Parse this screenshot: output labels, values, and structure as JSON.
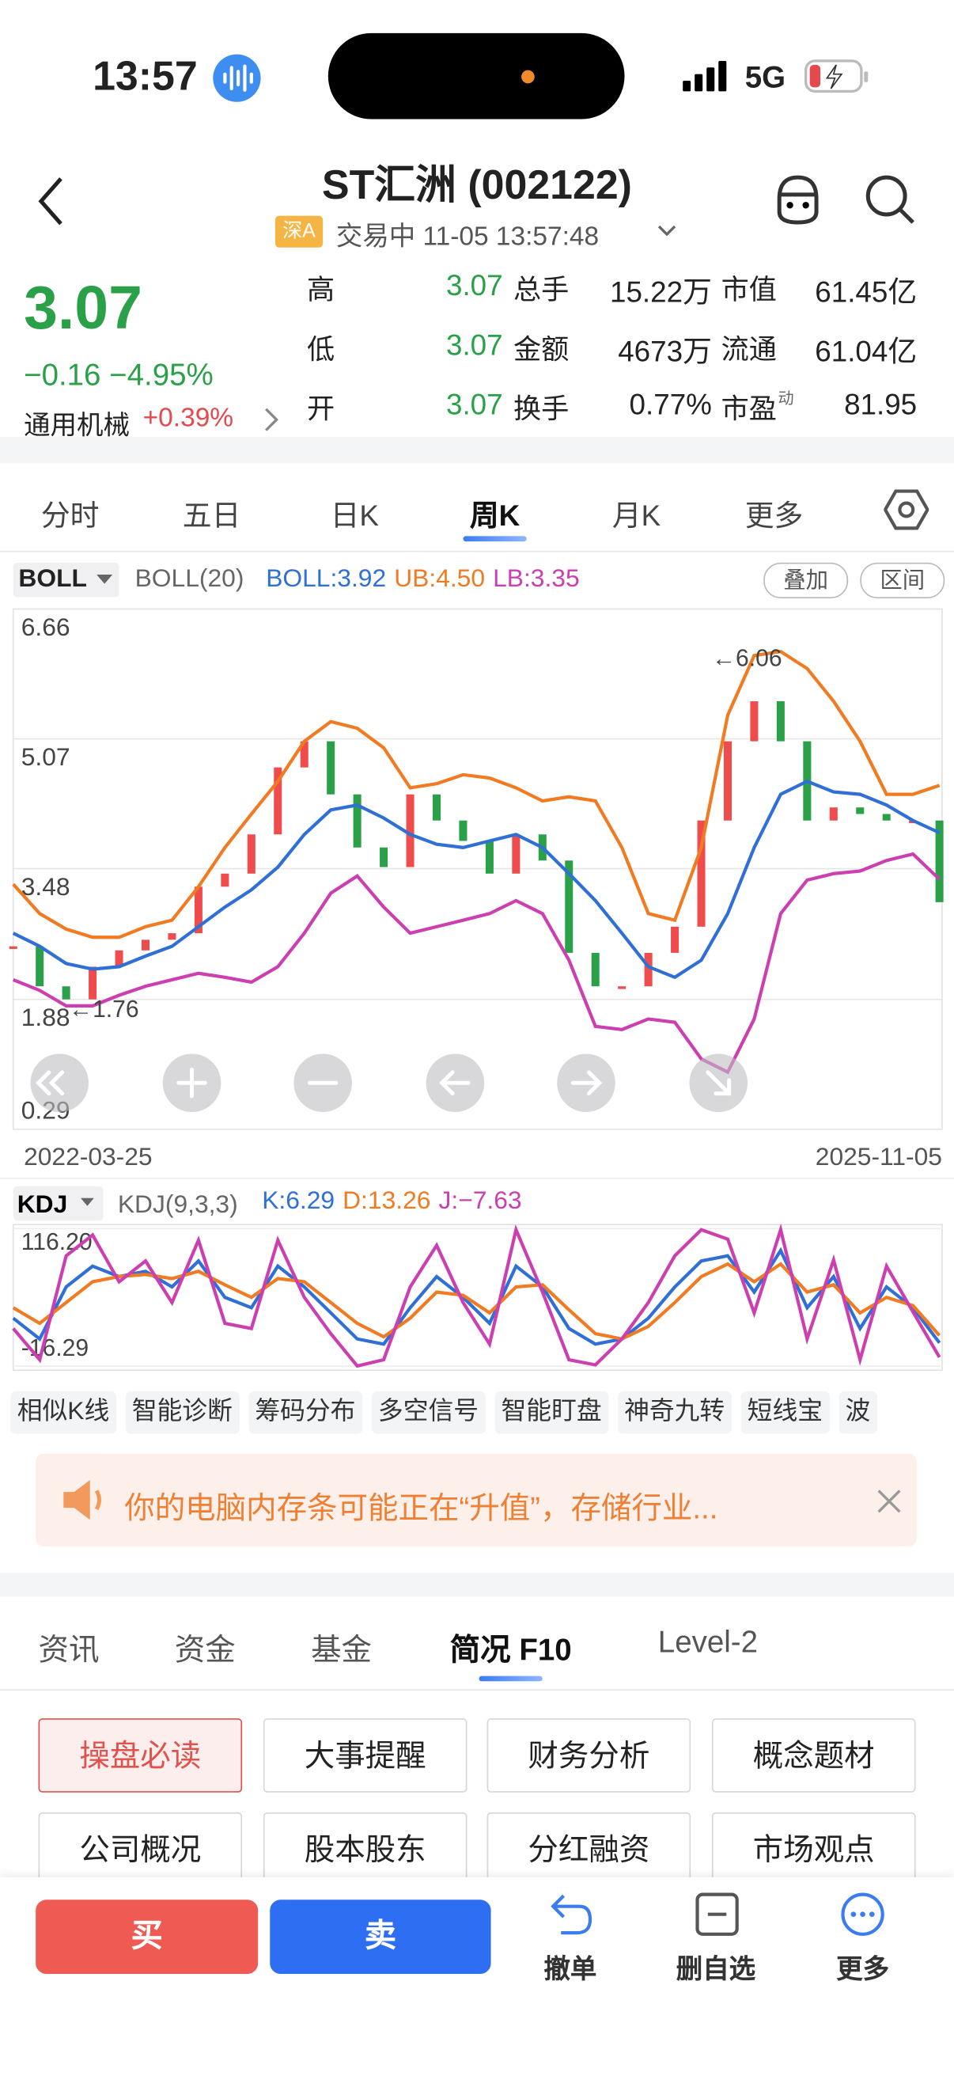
{
  "status": {
    "time": "13:57",
    "network": "5G"
  },
  "header": {
    "title": "ST汇洲 (002122)",
    "market": "深A",
    "status": "交易中 11-05 13:57:48"
  },
  "quote": {
    "price": "3.07",
    "change": "−0.16 −4.95%",
    "sector": "通用机械",
    "sector_change": "+0.39%",
    "rows": [
      [
        "高",
        "3.07",
        "总手",
        "15.22万",
        "市值",
        "61.45亿"
      ],
      [
        "低",
        "3.07",
        "金额",
        "4673万",
        "流通",
        "61.04亿"
      ],
      [
        "开",
        "3.07",
        "换手",
        "0.77%",
        "市盈",
        "81.95"
      ]
    ],
    "pe_sup": "动"
  },
  "period_tabs": [
    "分时",
    "五日",
    "日K",
    "周K",
    "月K",
    "更多"
  ],
  "indicator": {
    "name": "BOLL",
    "params": "BOLL(20)",
    "buttons": [
      "叠加",
      "区间"
    ]
  },
  "chart_data": [
    {
      "type": "line",
      "ylim": [
        0.29,
        6.66
      ],
      "yticks": [
        6.66,
        5.07,
        3.48,
        1.88,
        0.29
      ],
      "grid": true,
      "x_start": "2022-03-25",
      "x_end": "2025-11-05",
      "annotations": [
        {
          "label": "←6.06",
          "value": 6.06
        },
        {
          "label": "←1.76",
          "value": 1.76
        }
      ],
      "close": [
        2.53,
        2.04,
        1.88,
        2.28,
        2.48,
        2.61,
        2.69,
        3.26,
        3.42,
        3.9,
        4.72,
        5.04,
        4.39,
        3.74,
        3.5,
        4.39,
        4.07,
        3.82,
        3.42,
        3.9,
        3.58,
        2.45,
        2.04,
        2.04,
        2.45,
        2.77,
        4.07,
        5.04,
        5.53,
        5.04,
        4.07,
        4.23,
        4.15,
        4.07,
        4.07,
        3.07
      ],
      "series": [
        {
          "name": "BOLL",
          "label": "BOLL:3.92",
          "color": "#2f6fd6",
          "values": [
            2.69,
            2.53,
            2.32,
            2.25,
            2.28,
            2.41,
            2.53,
            2.77,
            3.01,
            3.22,
            3.5,
            3.9,
            4.2,
            4.26,
            4.1,
            3.9,
            3.78,
            3.74,
            3.82,
            3.9,
            3.74,
            3.42,
            3.09,
            2.69,
            2.28,
            2.15,
            2.36,
            2.93,
            3.74,
            4.39,
            4.55,
            4.42,
            4.39,
            4.26,
            4.07,
            3.92
          ]
        },
        {
          "name": "UB",
          "label": "UB:4.50",
          "color": "#f07b22",
          "values": [
            3.29,
            2.93,
            2.74,
            2.64,
            2.64,
            2.77,
            2.85,
            3.26,
            3.74,
            4.15,
            4.55,
            5.04,
            5.28,
            5.2,
            4.96,
            4.47,
            4.52,
            4.63,
            4.59,
            4.47,
            4.31,
            4.36,
            4.31,
            3.74,
            2.93,
            2.85,
            3.74,
            5.36,
            6.09,
            6.14,
            5.93,
            5.53,
            5.04,
            4.39,
            4.39,
            4.5
          ]
        },
        {
          "name": "LB",
          "label": "LB:3.35",
          "color": "#cc3fb0",
          "values": [
            2.12,
            1.99,
            1.8,
            1.8,
            1.93,
            2.04,
            2.12,
            2.2,
            2.15,
            2.09,
            2.28,
            2.69,
            3.18,
            3.39,
            3.01,
            2.69,
            2.77,
            2.85,
            2.93,
            3.09,
            2.93,
            2.36,
            1.55,
            1.51,
            1.64,
            1.6,
            1.15,
            0.99,
            1.64,
            2.93,
            3.34,
            3.42,
            3.45,
            3.58,
            3.66,
            3.35
          ]
        }
      ]
    },
    {
      "type": "line",
      "name": "KDJ",
      "params": "KDJ(9,3,3)",
      "ylim": [
        -16.29,
        116.2
      ],
      "yticks": [
        {
          "value": 116.2,
          "label": "116.20"
        },
        -16.29
      ],
      "series": [
        {
          "name": "K",
          "label": "K:6.29",
          "color": "#2f6fd6",
          "values": [
            30,
            10,
            60,
            80,
            70,
            75,
            60,
            85,
            50,
            40,
            80,
            60,
            35,
            10,
            5,
            40,
            70,
            50,
            25,
            80,
            60,
            20,
            5,
            10,
            30,
            60,
            85,
            90,
            55,
            95,
            40,
            70,
            20,
            60,
            40,
            6.29
          ]
        },
        {
          "name": "D",
          "label": "D:13.26",
          "color": "#f07b22",
          "values": [
            40,
            25,
            45,
            65,
            70,
            72,
            68,
            75,
            62,
            50,
            68,
            65,
            45,
            25,
            12,
            30,
            55,
            52,
            35,
            60,
            62,
            38,
            15,
            10,
            22,
            45,
            70,
            82,
            65,
            82,
            55,
            62,
            35,
            50,
            42,
            13.26
          ]
        },
        {
          "name": "J",
          "label": "J:−7.63",
          "color": "#cc3fb0",
          "values": [
            20,
            -10,
            90,
            110,
            65,
            85,
            45,
            105,
            25,
            20,
            105,
            50,
            15,
            -16,
            -10,
            60,
            100,
            45,
            5,
            115,
            55,
            -10,
            -15,
            10,
            45,
            90,
            115,
            106,
            35,
            115,
            10,
            86,
            -10,
            80,
            36,
            -7.63
          ]
        }
      ]
    }
  ],
  "tools": [
    "相似K线",
    "智能诊断",
    "筹码分布",
    "多空信号",
    "智能盯盘",
    "神奇九转",
    "短线宝",
    "波"
  ],
  "banner": "你的电脑内存条可能正在“升值”，存储行业...",
  "info_tabs": [
    "资讯",
    "资金",
    "基金",
    "简况 F10",
    "Level-2"
  ],
  "f10_buttons": [
    "操盘必读",
    "大事提醒",
    "财务分析",
    "概念题材",
    "公司概况",
    "股本股东",
    "分红融资",
    "市场观点"
  ],
  "actions": {
    "buy": "买",
    "sell": "卖",
    "items": [
      "撤单",
      "删自选",
      "更多"
    ]
  }
}
